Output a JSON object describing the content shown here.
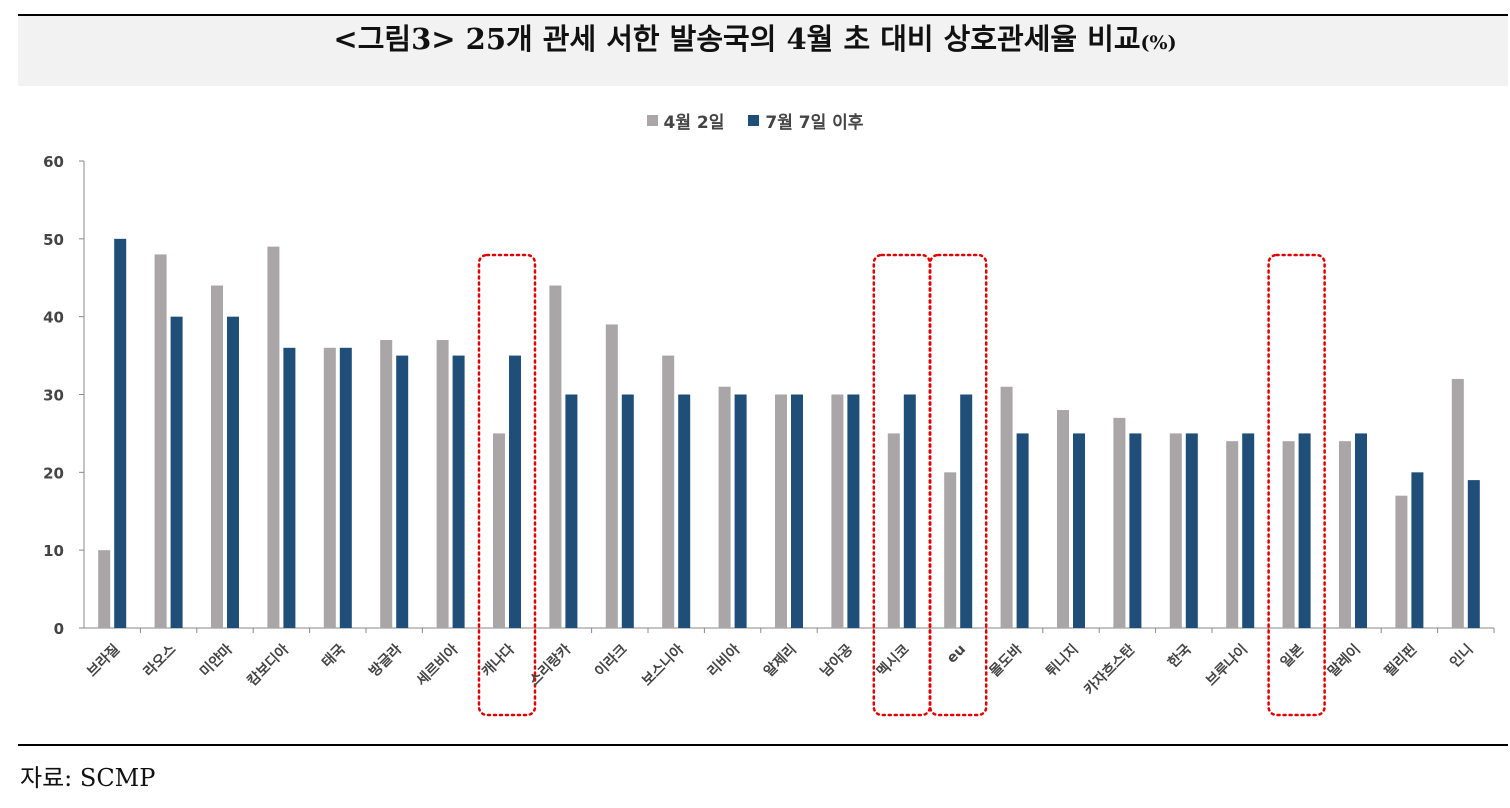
{
  "title": {
    "main": "<그림3> 25개 관세 서한 발송국의 4월 초 대비 상호관세율 비교",
    "unit": "(%)"
  },
  "source": "자료: SCMP",
  "colors": {
    "series1": "#aaa5a6",
    "series2": "#1f4e79",
    "highlight": "#e00000"
  },
  "chart_data": {
    "type": "bar",
    "title": "<그림3> 25개 관세 서한 발송국의 4월 초 대비 상호관세율 비교(%)",
    "categories": [
      "브라질",
      "라오스",
      "미얀마",
      "캄보디아",
      "태국",
      "방글라",
      "세르비아",
      "캐나다",
      "스리랑카",
      "이라크",
      "보스니아",
      "리비아",
      "알제리",
      "남아공",
      "멕시코",
      "eu",
      "몰도바",
      "튀니지",
      "카자흐스탄",
      "한국",
      "브루나이",
      "일본",
      "말레이",
      "필리핀",
      "인니"
    ],
    "series": [
      {
        "name": "4월 2일",
        "values": [
          10,
          48,
          44,
          49,
          36,
          37,
          37,
          25,
          44,
          39,
          35,
          31,
          30,
          30,
          25,
          20,
          31,
          28,
          27,
          25,
          24,
          24,
          24,
          17,
          32
        ]
      },
      {
        "name": "7월 7일 이후",
        "values": [
          50,
          40,
          40,
          36,
          36,
          35,
          35,
          35,
          30,
          30,
          30,
          30,
          30,
          30,
          30,
          30,
          25,
          25,
          25,
          25,
          25,
          25,
          25,
          20,
          19
        ]
      }
    ],
    "ylim": [
      0,
      60
    ],
    "yticks": [
      0,
      10,
      20,
      30,
      40,
      50,
      60
    ],
    "legend": "top-center",
    "grid": false,
    "highlighted_categories": [
      "캐나다",
      "멕시코",
      "eu",
      "일본"
    ]
  }
}
